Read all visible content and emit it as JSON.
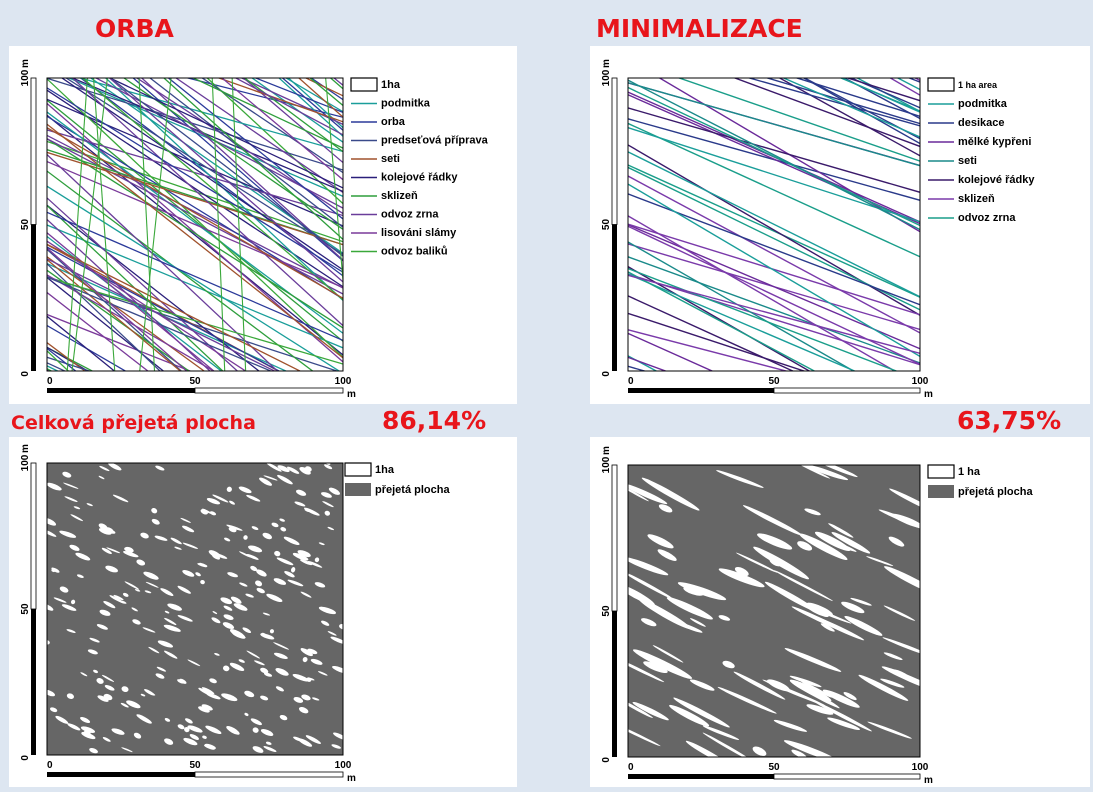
{
  "headings": {
    "left": "ORBA",
    "right": "MINIMALIZACE",
    "caption": "Celková přejetá plocha",
    "pct_left": "86,14%",
    "pct_right": "63,75%"
  },
  "colors": {
    "heading_red": "#e8151b",
    "background": "#dde6f1",
    "covered_gray": "#666666",
    "podmitka": "#1a9e9a",
    "orba": "#2b3a9a",
    "predsetova": "#3a4a8a",
    "seti": "#a0522d",
    "kolejove": "#2a1f7a",
    "sklizen": "#2e9e3c",
    "odvoz_zrna": "#6a3d9a",
    "lisovani": "#7a3a9a",
    "odvoz_baliku": "#3aa83a",
    "desikace": "#2a3a8a",
    "melke": "#6a2a9a",
    "seti_min": "#1a8a8a",
    "kolejove_min": "#3a1a6a",
    "sklizen_min": "#7a3aaa",
    "odvoz_zrna_min": "#1a9e8a"
  },
  "axis": {
    "x_ticks": [
      "0",
      "50",
      "100"
    ],
    "y_ticks": [
      "0",
      "50",
      "100"
    ],
    "unit": "m"
  },
  "panels": [
    {
      "id": "orba-tracks",
      "legend": [
        {
          "label": "1ha",
          "kind": "box"
        },
        {
          "label": "podmitka",
          "color": "podmitka"
        },
        {
          "label": "orba",
          "color": "orba"
        },
        {
          "label": "predseťová příprava",
          "color": "predsetova"
        },
        {
          "label": "seti",
          "color": "seti"
        },
        {
          "label": "kolejové řádky",
          "color": "kolejove"
        },
        {
          "label": "sklizeň",
          "color": "sklizen"
        },
        {
          "label": "odvoz zrna",
          "color": "odvoz_zrna"
        },
        {
          "label": "lisováni slámy",
          "color": "lisovani"
        },
        {
          "label": "odvoz baliků",
          "color": "odvoz_baliku"
        }
      ]
    },
    {
      "id": "minimalizace-tracks",
      "legend": [
        {
          "label": "1 ha area",
          "kind": "box"
        },
        {
          "label": "podmitka",
          "color": "podmitka"
        },
        {
          "label": "desikace",
          "color": "desikace"
        },
        {
          "label": "mělké kypřeni",
          "color": "melke"
        },
        {
          "label": "seti",
          "color": "seti_min"
        },
        {
          "label": "kolejové řádky",
          "color": "kolejove_min"
        },
        {
          "label": "sklizeň",
          "color": "sklizen_min"
        },
        {
          "label": "odvoz zrna",
          "color": "odvoz_zrna_min"
        }
      ]
    },
    {
      "id": "orba-covered",
      "legend": [
        {
          "label": "1ha",
          "kind": "box"
        },
        {
          "label": "přejetá plocha",
          "kind": "fill"
        }
      ]
    },
    {
      "id": "minimalizace-covered",
      "legend": [
        {
          "label": "1 ha",
          "kind": "box"
        },
        {
          "label": "přejetá plocha",
          "kind": "fill"
        }
      ]
    }
  ]
}
